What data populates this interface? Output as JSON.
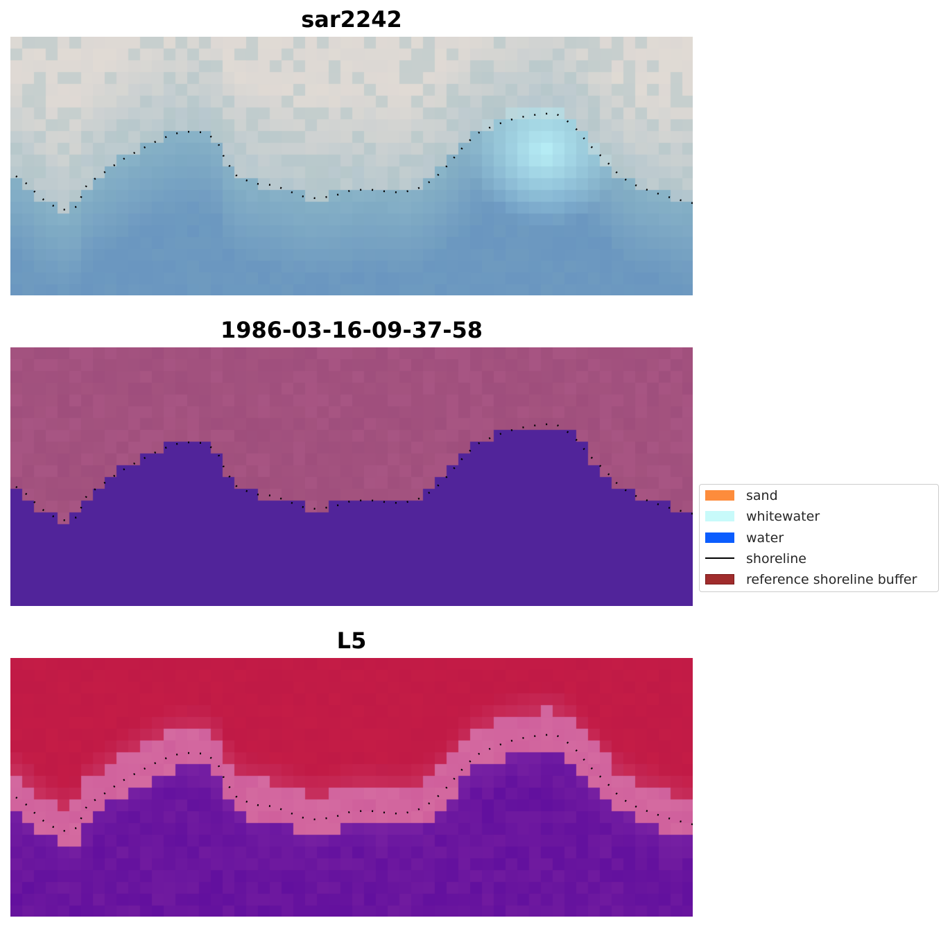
{
  "panels": [
    {
      "title": "sar2242",
      "style": "rgb",
      "base_colors": {
        "land": "#dcd8d4",
        "shore_water": "#8ab4c8",
        "deep_water": "#6a96c0",
        "whitewater": "#b8eef6"
      }
    },
    {
      "title": "1986-03-16-09-37-58",
      "style": "classified",
      "base_colors": {
        "land": "#a4537f",
        "water": "#51249a"
      }
    },
    {
      "title": "L5",
      "style": "index",
      "base_colors": {
        "land": "#c01a46",
        "transition": "#d46aa0",
        "water": "#62109e"
      }
    }
  ],
  "legend": {
    "items": [
      {
        "kind": "patch",
        "label": "sand",
        "color": "#fd8c3c"
      },
      {
        "kind": "patch",
        "label": "whitewater",
        "color": "#c8fafa"
      },
      {
        "kind": "patch",
        "label": "water",
        "color": "#0b5dfe"
      },
      {
        "kind": "line",
        "label": "shoreline",
        "color": "#000000"
      },
      {
        "kind": "patch",
        "label": "reference shoreline buffer",
        "color": "#a02c2c"
      }
    ]
  }
}
